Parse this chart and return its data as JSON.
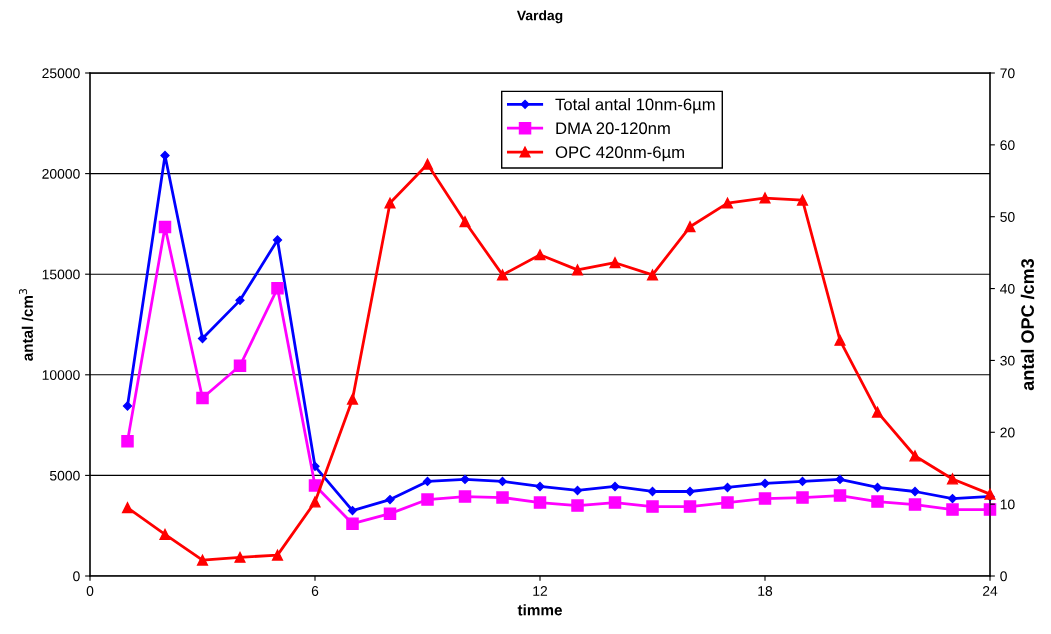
{
  "chart_data": {
    "type": "line",
    "title": "Vardag",
    "xlabel": "timme",
    "ylabel": "antal /cm$^{3}$",
    "y2label": "antal OPC /cm3",
    "x": [
      1,
      2,
      3,
      4,
      5,
      6,
      7,
      8,
      9,
      10,
      11,
      12,
      13,
      14,
      15,
      16,
      17,
      18,
      19,
      20,
      21,
      22,
      23,
      24
    ],
    "xlim": [
      0,
      24
    ],
    "xticks": [
      0,
      6,
      12,
      18,
      24
    ],
    "ylim": [
      0,
      25000
    ],
    "yticks": [
      0,
      5000,
      10000,
      15000,
      20000,
      25000
    ],
    "y2lim": [
      0,
      70
    ],
    "y2ticks": [
      0,
      10,
      20,
      30,
      40,
      50,
      60,
      70
    ],
    "grid": "y",
    "legend": "top",
    "series": [
      {
        "name": "Total antal 10nm-6µm",
        "color": "#0000ff",
        "marker": "diamond",
        "values": [
          8450,
          20900,
          11800,
          13700,
          16700,
          5450,
          3250,
          3800,
          4700,
          4800,
          4700,
          4450,
          4250,
          4450,
          4200,
          4200,
          4400,
          4600,
          4700,
          4800,
          4400,
          4200,
          3850,
          3950
        ]
      },
      {
        "name": "DMA 20-120nm",
        "color": "#ff00ff",
        "marker": "square",
        "values": [
          6700,
          17350,
          8850,
          10450,
          14300,
          4500,
          2600,
          3100,
          3800,
          3950,
          3900,
          3650,
          3500,
          3650,
          3450,
          3450,
          3650,
          3850,
          3900,
          4000,
          3700,
          3550,
          3300,
          3300
        ]
      },
      {
        "name": "OPC 420nm-6µm",
        "color": "#ff0000",
        "marker": "triangle",
        "axis": "y2",
        "values": [
          9.5,
          5.8,
          2.2,
          2.6,
          2.9,
          10.3,
          24.6,
          51.9,
          57.3,
          49.3,
          41.9,
          44.7,
          42.6,
          43.6,
          41.9,
          48.6,
          51.9,
          52.6,
          52.3,
          32.8,
          22.8,
          16.7,
          13.5,
          11.4
        ]
      }
    ]
  }
}
